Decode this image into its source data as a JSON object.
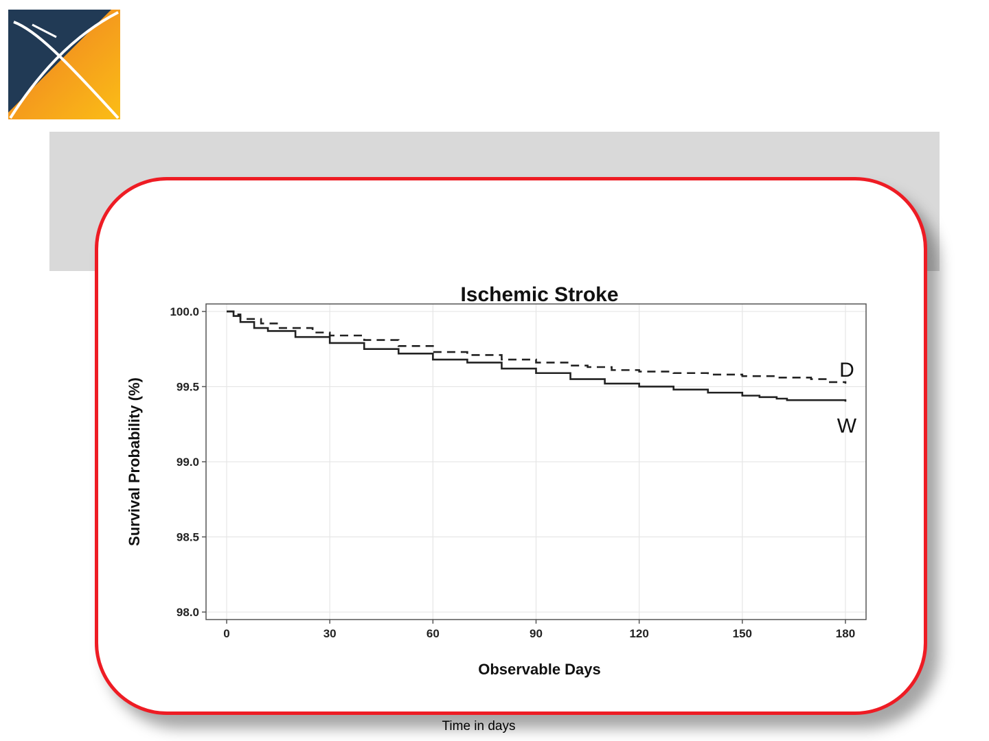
{
  "logo": {
    "name": "ohdsi-logo",
    "colors": {
      "navy": "#213a55",
      "orange": "#f28c28",
      "yellow": "#fbb917"
    }
  },
  "caption": "Time in days",
  "chart_data": {
    "type": "line",
    "title": "Ischemic Stroke",
    "xlabel": "Observable Days",
    "ylabel": "Survival Probability (%)",
    "xlim": [
      -6,
      186
    ],
    "ylim": [
      97.95,
      100.05
    ],
    "xticks": [
      0,
      30,
      60,
      90,
      120,
      150,
      180
    ],
    "yticks": [
      98.0,
      98.5,
      99.0,
      99.5,
      100.0
    ],
    "ytick_labels": [
      "98.0",
      "98.5",
      "99.0",
      "99.5",
      "100.0"
    ],
    "grid": true,
    "series": [
      {
        "name": "D",
        "style": "dashed",
        "color": "#222222",
        "x": [
          0,
          2,
          4,
          10,
          15,
          25,
          30,
          40,
          50,
          60,
          70,
          80,
          90,
          100,
          105,
          112,
          120,
          130,
          140,
          150,
          160,
          170,
          175,
          180
        ],
        "y": [
          100.0,
          99.98,
          99.95,
          99.92,
          99.89,
          99.86,
          99.84,
          99.81,
          99.77,
          99.73,
          99.71,
          99.68,
          99.66,
          99.64,
          99.63,
          99.61,
          99.6,
          99.59,
          99.58,
          99.57,
          99.56,
          99.55,
          99.53,
          99.52
        ]
      },
      {
        "name": "W",
        "style": "solid",
        "color": "#222222",
        "x": [
          0,
          2,
          4,
          8,
          12,
          20,
          30,
          40,
          50,
          60,
          70,
          80,
          90,
          100,
          110,
          120,
          130,
          140,
          150,
          155,
          160,
          163,
          170,
          180
        ],
        "y": [
          100.0,
          99.97,
          99.93,
          99.89,
          99.87,
          99.83,
          99.79,
          99.75,
          99.72,
          99.68,
          99.66,
          99.62,
          99.59,
          99.55,
          99.52,
          99.5,
          99.48,
          99.46,
          99.44,
          99.43,
          99.42,
          99.41,
          99.41,
          99.4
        ]
      }
    ]
  }
}
